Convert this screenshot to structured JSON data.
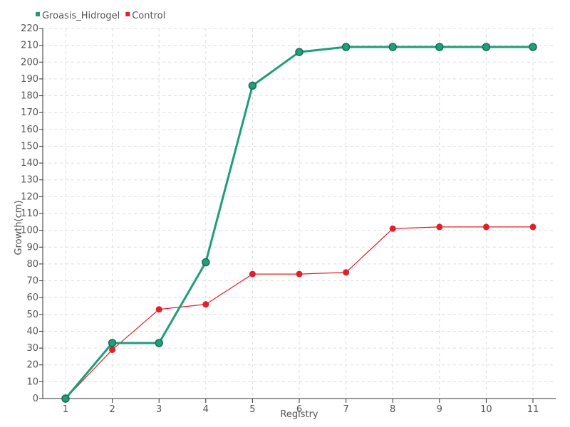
{
  "chart_data": {
    "type": "line",
    "title": "",
    "xlabel": "Registry",
    "ylabel": "Growth(cm)",
    "x": [
      1,
      2,
      3,
      4,
      5,
      6,
      7,
      8,
      9,
      10,
      11
    ],
    "ylim": [
      0,
      220
    ],
    "ytick_step": 10,
    "grid": true,
    "legend_position": "top-left",
    "series": [
      {
        "name": "Groasis_Hidrogel",
        "color": "#1f9e7a",
        "values": [
          0,
          33,
          33,
          81,
          186,
          206,
          209,
          209,
          209,
          209,
          209
        ]
      },
      {
        "name": "Control",
        "color": "#e0202c",
        "values": [
          0,
          29,
          53,
          56,
          74,
          74,
          75,
          101,
          102,
          102,
          102
        ]
      }
    ]
  }
}
